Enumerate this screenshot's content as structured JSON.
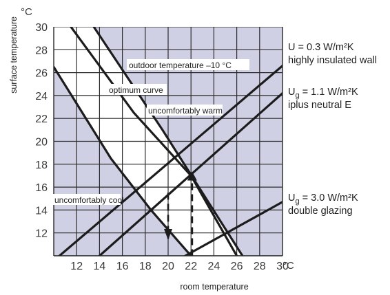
{
  "chart_data": {
    "type": "line",
    "title": "",
    "xlabel": "room temperature",
    "ylabel": "surface temperature",
    "x_unit": "°C",
    "y_unit": "°C",
    "xlim": [
      10,
      30
    ],
    "ylim": [
      10,
      30
    ],
    "x_ticks": [
      "12",
      "14",
      "16",
      "18",
      "20",
      "22",
      "24",
      "26",
      "28",
      "30"
    ],
    "y_ticks": [
      "12",
      "14",
      "16",
      "18",
      "20",
      "22",
      "24",
      "26",
      "28",
      "30"
    ],
    "grid": true,
    "colors": {
      "comfort_zone": "#ffffff",
      "outside_zone": "#cfd0e3",
      "grid": "#2b2b2b",
      "lines": "#1c1c1c"
    },
    "series": [
      {
        "points": [
          [
            13.5,
            30
          ],
          [
            19.5,
            21
          ],
          [
            26.5,
            10
          ]
        ]
      },
      {
        "points": [
          [
            10,
            26.5
          ],
          [
            15,
            18.5
          ],
          [
            18.5,
            14
          ],
          [
            22,
            10
          ]
        ]
      },
      {
        "points": [
          [
            11.5,
            30
          ],
          [
            17,
            22.5
          ],
          [
            22,
            17
          ],
          [
            26,
            10
          ]
        ]
      },
      {
        "points": [
          [
            21.5,
            10
          ],
          [
            30,
            14.7
          ]
        ]
      },
      {
        "points": [
          [
            14,
            10
          ],
          [
            30,
            24.2
          ]
        ]
      },
      {
        "points": [
          [
            10.5,
            10
          ],
          [
            30,
            26.6
          ]
        ]
      }
    ],
    "guide_lines": [
      {
        "points": [
          [
            20,
            15.5
          ],
          [
            20,
            11.5
          ]
        ],
        "arrow": true
      },
      {
        "points": [
          [
            22.1,
            17.3
          ],
          [
            22.1,
            10
          ]
        ],
        "arrow": false
      }
    ],
    "annotations": [
      {
        "text": "outdoor temperature –10 °C"
      },
      {
        "text": "optimum curve"
      },
      {
        "text": "uncomfortably warm"
      },
      {
        "text": "uncomfortably cool"
      }
    ],
    "side_labels": [
      {
        "line1": "U = 0.3 W/m²K",
        "line2": "highly insulated wall"
      },
      {
        "line1_main": "U",
        "line1_sub": "g",
        "line1_rest": " = 1.1 W/m²K",
        "line2": "iplus neutral E"
      },
      {
        "line1_main": "U",
        "line1_sub": "g",
        "line1_rest": " = 3.0 W/m²K",
        "line2": "double glazing"
      }
    ]
  }
}
